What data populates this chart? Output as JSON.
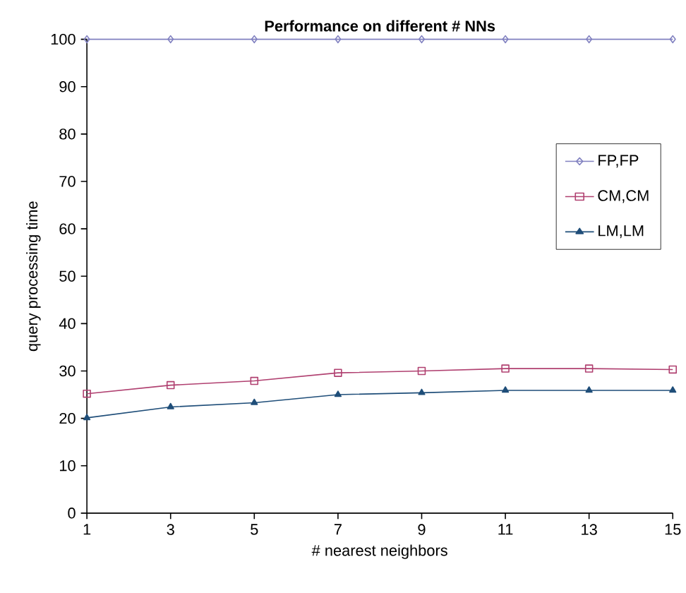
{
  "chart_data": {
    "type": "line",
    "title": "Performance on different # NNs",
    "xlabel": "# nearest neighbors",
    "ylabel": "query processing time",
    "x": [
      1,
      3,
      5,
      7,
      9,
      11,
      13,
      15
    ],
    "xlim": [
      1,
      15
    ],
    "xticks": [
      1,
      3,
      5,
      7,
      9,
      11,
      13,
      15
    ],
    "ylim": [
      0,
      100
    ],
    "yticks": [
      0,
      10,
      20,
      30,
      40,
      50,
      60,
      70,
      80,
      90,
      100
    ],
    "legend": "right",
    "grid": false,
    "series": [
      {
        "name": "FP,FP",
        "color": "#8080c0",
        "marker": "diamond",
        "values": [
          100,
          100,
          100,
          100,
          100,
          100,
          100,
          100
        ]
      },
      {
        "name": "CM,CM",
        "color": "#b04070",
        "marker": "square",
        "values": [
          25.2,
          27.0,
          27.9,
          29.6,
          30.0,
          30.5,
          30.5,
          30.3
        ]
      },
      {
        "name": "LM,LM",
        "color": "#1f4e79",
        "marker": "triangle",
        "values": [
          20.1,
          22.4,
          23.3,
          25.0,
          25.4,
          25.9,
          25.9,
          25.9
        ]
      }
    ]
  }
}
